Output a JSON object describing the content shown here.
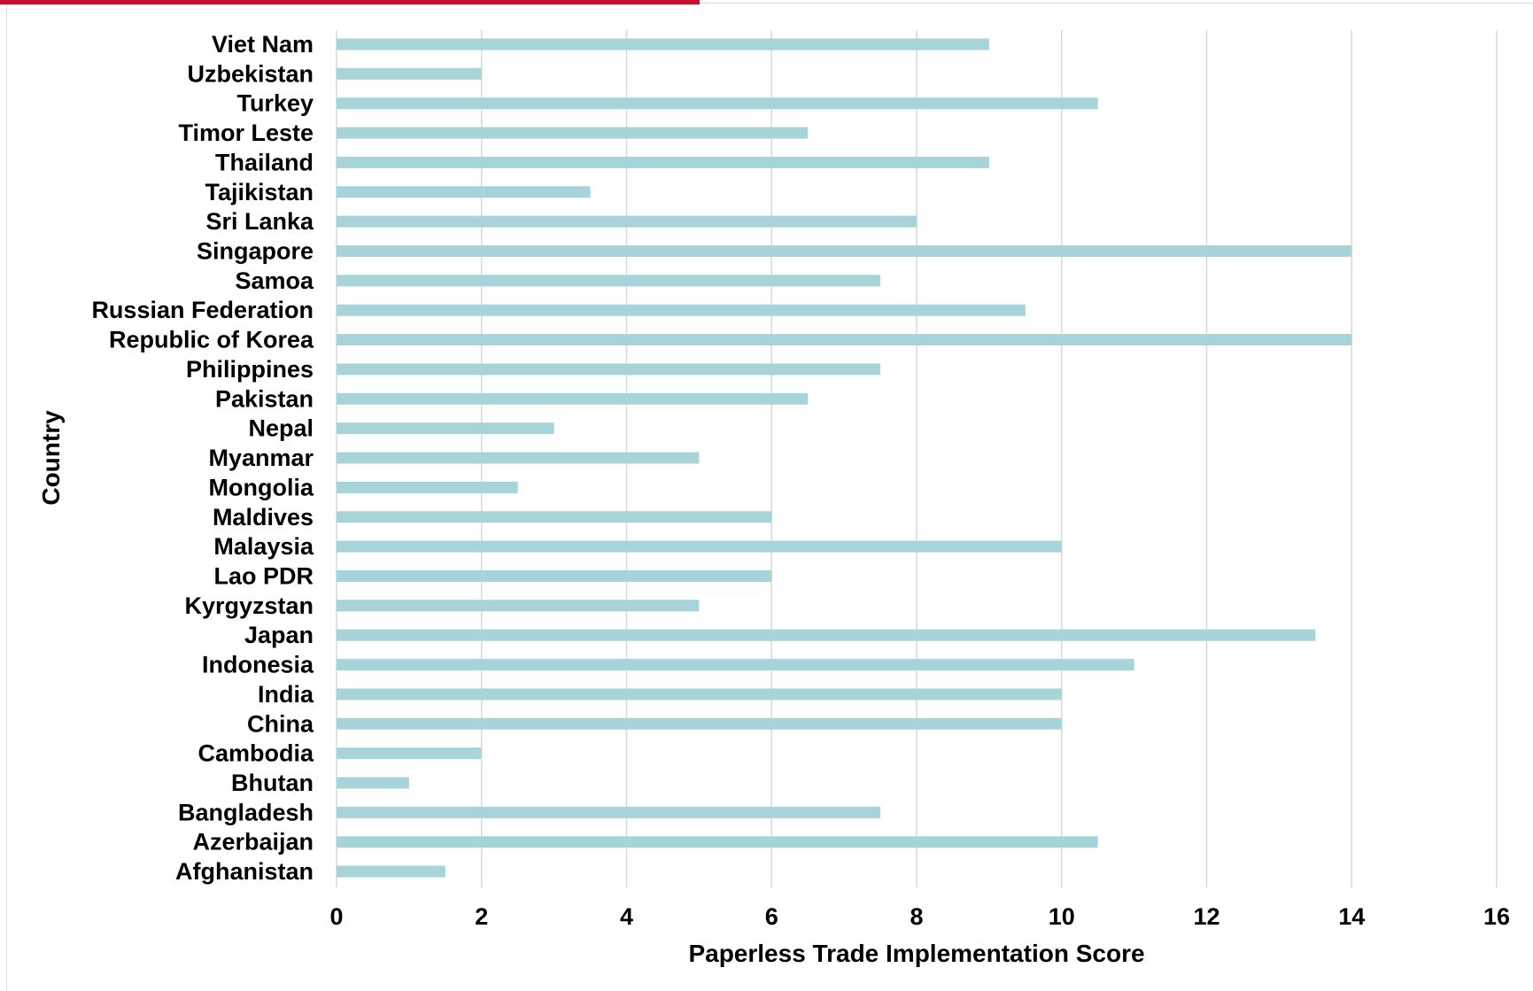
{
  "chart_data": {
    "type": "bar",
    "orientation": "horizontal",
    "title": "",
    "xlabel": "Paperless Trade Implementation Score",
    "ylabel": "Country",
    "xlim": [
      0,
      16
    ],
    "xticks": [
      0,
      2,
      4,
      6,
      8,
      10,
      12,
      14,
      16
    ],
    "grid": "vertical",
    "legend": "none",
    "bar_color": "#a6d4d9",
    "categories": [
      "Viet Nam",
      "Uzbekistan",
      "Turkey",
      "Timor Leste",
      "Thailand",
      "Tajikistan",
      "Sri Lanka",
      "Singapore",
      "Samoa",
      "Russian Federation",
      "Republic of Korea",
      "Philippines",
      "Pakistan",
      "Nepal",
      "Myanmar",
      "Mongolia",
      "Maldives",
      "Malaysia",
      "Lao PDR",
      "Kyrgyzstan",
      "Japan",
      "Indonesia",
      "India",
      "China",
      "Cambodia",
      "Bhutan",
      "Bangladesh",
      "Azerbaijan",
      "Afghanistan"
    ],
    "values": [
      9,
      2,
      10.5,
      6.5,
      9,
      3.5,
      8,
      14,
      7.5,
      9.5,
      14,
      7.5,
      6.5,
      3,
      5,
      2.5,
      6,
      10,
      6,
      5,
      13.5,
      11,
      10,
      10,
      2,
      1,
      7.5,
      10.5,
      1.5
    ]
  },
  "decor": {
    "accent_color": "#c8102e"
  }
}
